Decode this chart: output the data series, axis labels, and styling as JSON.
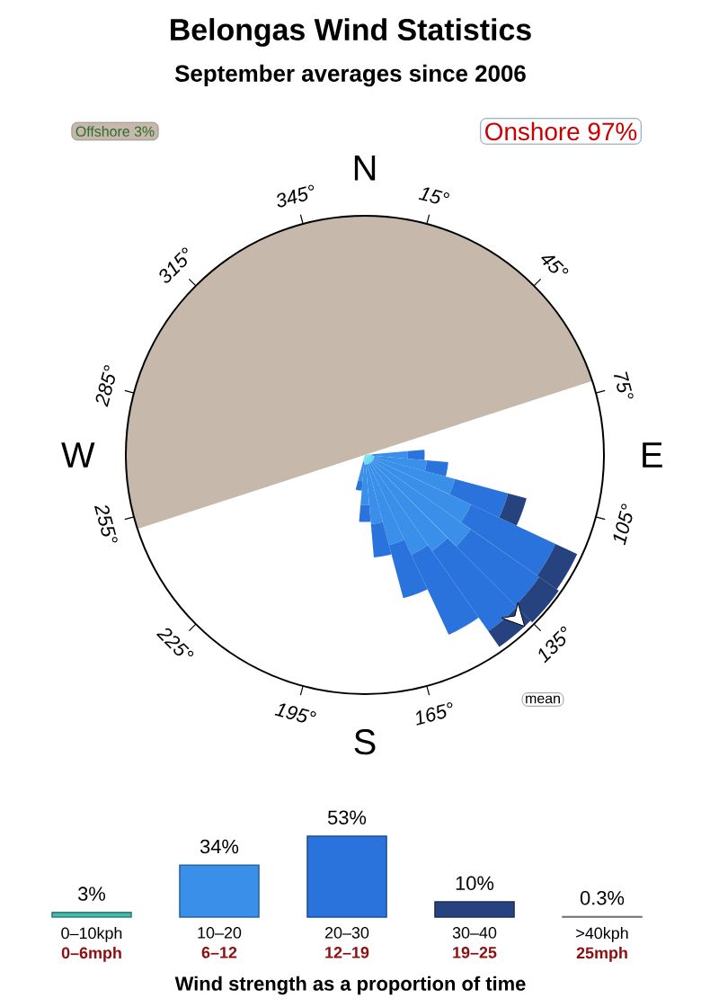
{
  "chart_data": [
    {
      "type": "other",
      "title": "Belongas Wind Statistics",
      "subtitle": "September averages since 2006",
      "annotations": [
        "Offshore 3%",
        "Onshore 97%",
        "mean",
        "N",
        "15°",
        "45°",
        "75°",
        "E",
        "105°",
        "135°",
        "165°",
        "S",
        "195°",
        "225°",
        "255°",
        "W",
        "285°",
        "315°",
        "345°"
      ]
    },
    {
      "type": "bar",
      "xlabel": "Wind strength as a proportion of time",
      "categories": [
        "0–10kph",
        "10–20",
        "20–30",
        "30–40",
        ">40kph"
      ],
      "values": [
        3,
        34,
        53,
        10,
        0.3
      ],
      "value_labels": [
        "3%",
        "34%",
        "53%",
        "10%",
        "0.3%"
      ],
      "colors": [
        "#49b8b0",
        "#3a8fe8",
        "#2a72dc",
        "#26427f",
        "#9a9a9a"
      ],
      "ylim": [
        0,
        53
      ],
      "annotations": [
        "0–6mph",
        "6–12",
        "12–19",
        "19–25",
        "25mph"
      ]
    }
  ]
}
